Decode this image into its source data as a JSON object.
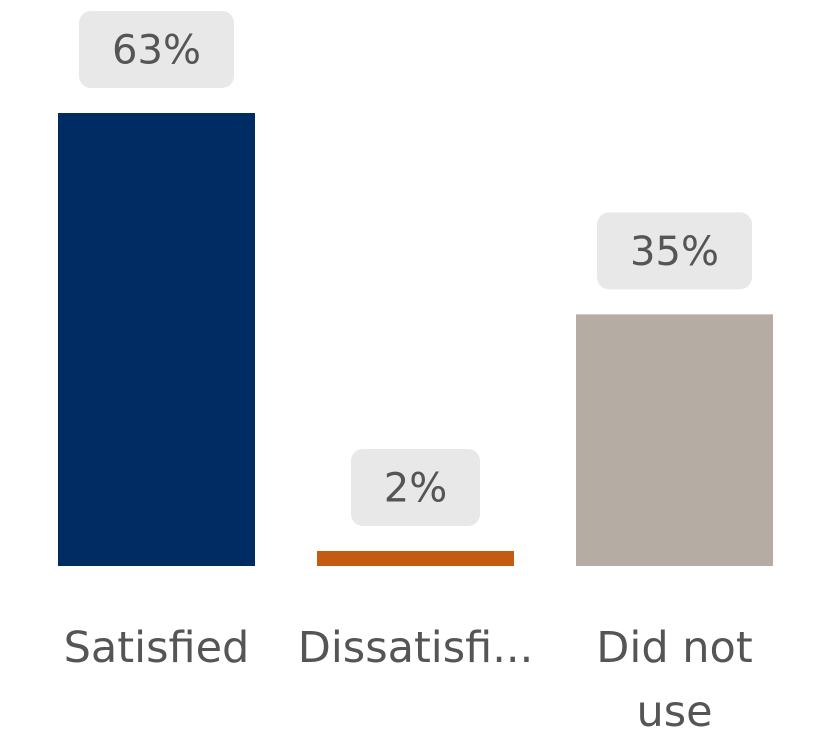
{
  "chart_data": {
    "type": "bar",
    "categories": [
      "Satisfied",
      "Dissatisfi...",
      "Did not use"
    ],
    "category_lines": [
      [
        "Satisfied"
      ],
      [
        "Dissatisfi..."
      ],
      [
        "Did not",
        "use"
      ]
    ],
    "values": [
      63,
      2,
      35
    ],
    "value_labels": [
      "63%",
      "2%",
      "35%"
    ],
    "unit": "%",
    "colors": [
      "#002c64",
      "#c55a11",
      "#b5aca3"
    ],
    "ylim": [
      0,
      63
    ],
    "grid": false,
    "legend": "none",
    "title": "",
    "xlabel": "",
    "ylabel": ""
  }
}
